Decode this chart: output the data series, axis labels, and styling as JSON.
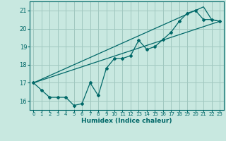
{
  "title": "",
  "xlabel": "Humidex (Indice chaleur)",
  "ylabel": "",
  "bg_color": "#c8e8e0",
  "grid_color": "#a0c8c0",
  "line_color": "#006868",
  "xlim": [
    -0.5,
    23.5
  ],
  "ylim": [
    15.5,
    21.5
  ],
  "xticks": [
    0,
    1,
    2,
    3,
    4,
    5,
    6,
    7,
    8,
    9,
    10,
    11,
    12,
    13,
    14,
    15,
    16,
    17,
    18,
    19,
    20,
    21,
    22,
    23
  ],
  "yticks": [
    16,
    17,
    18,
    19,
    20,
    21
  ],
  "series1_x": [
    0,
    1,
    2,
    3,
    4,
    5,
    6,
    7,
    8,
    9,
    10,
    11,
    12,
    13,
    14,
    15,
    16,
    17,
    18,
    19,
    20,
    21,
    22,
    23
  ],
  "series1_y": [
    17.0,
    16.6,
    16.2,
    16.2,
    16.2,
    15.75,
    15.85,
    17.0,
    16.3,
    17.8,
    18.35,
    18.35,
    18.5,
    19.35,
    18.85,
    19.0,
    19.4,
    19.8,
    20.4,
    20.85,
    21.0,
    20.5,
    20.5,
    20.4
  ],
  "series2_x": [
    0,
    23
  ],
  "series2_y": [
    17.0,
    20.4
  ],
  "series3_x": [
    0,
    21,
    22,
    23
  ],
  "series3_y": [
    17.0,
    21.2,
    20.5,
    20.4
  ]
}
